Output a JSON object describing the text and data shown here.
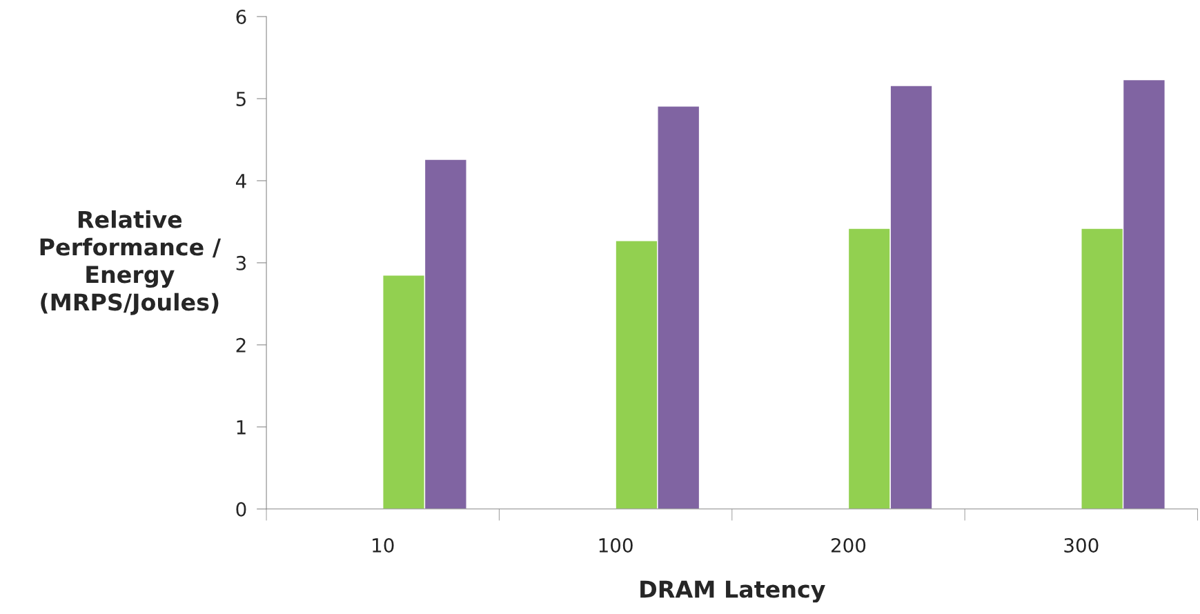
{
  "chart_data": {
    "type": "bar",
    "xlabel": "DRAM Latency",
    "ylabel": "Relative\nPerformance /\nEnergy\n(MRPS/Joules)",
    "categories": [
      "10",
      "100",
      "200",
      "300"
    ],
    "series": [
      {
        "color": "#92d050",
        "values": [
          2.85,
          3.27,
          3.42,
          3.42
        ]
      },
      {
        "color": "#8064a2",
        "values": [
          4.26,
          4.91,
          5.16,
          5.23
        ]
      }
    ],
    "ylim": [
      0,
      6
    ],
    "yticks": [
      0,
      1,
      2,
      3,
      4,
      5,
      6
    ],
    "grid": false,
    "legend": false
  }
}
